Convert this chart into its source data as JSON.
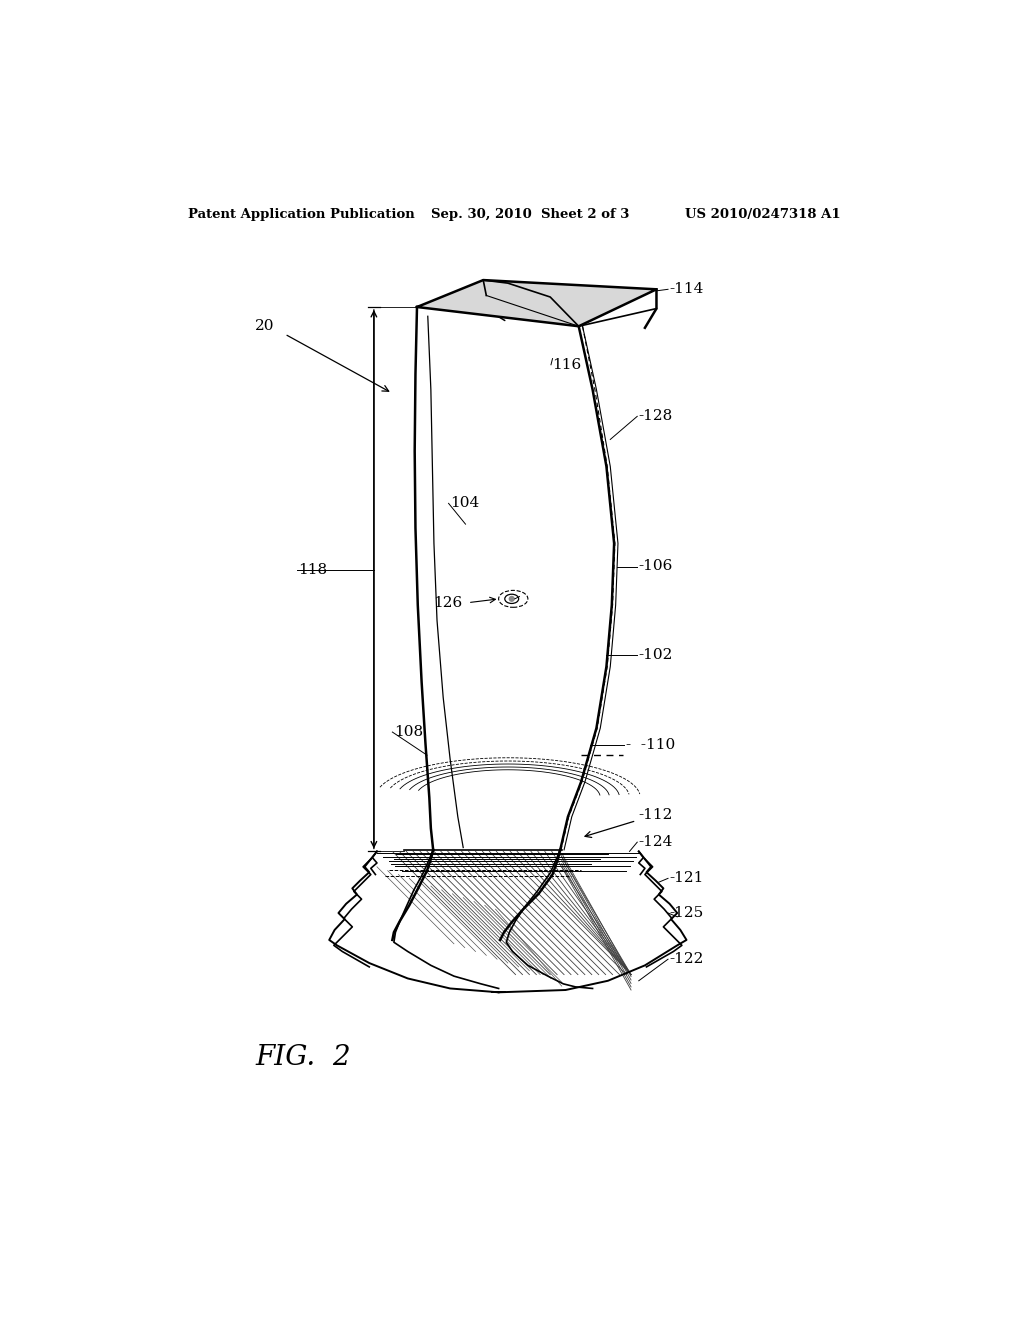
{
  "background_color": "#ffffff",
  "header_left": "Patent Application Publication",
  "header_center": "Sep. 30, 2010  Sheet 2 of 3",
  "header_right": "US 2010/0247318 A1",
  "figure_label": "FIG.  2"
}
